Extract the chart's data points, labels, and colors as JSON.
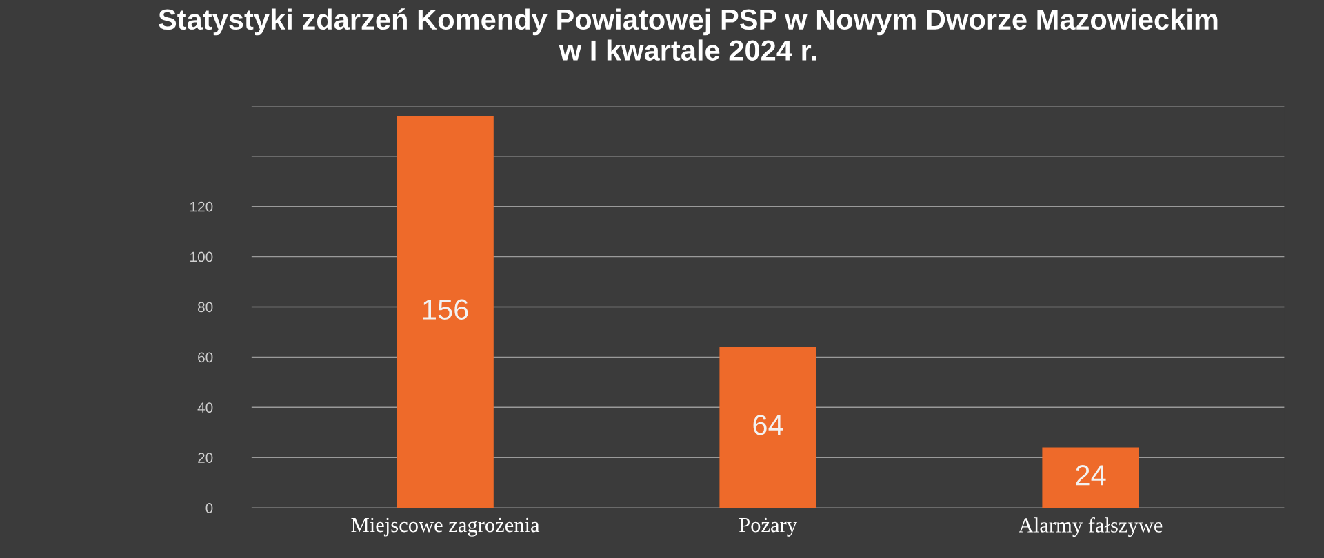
{
  "chart_data": {
    "type": "bar",
    "title": "Statystyki zdarzeń Komendy Powiatowej PSP w Nowym Dworze Mazowieckim\nw I kwartale 2024 r.",
    "categories": [
      "Miejscowe zagrożenia",
      "Pożary",
      "Alarmy fałszywe"
    ],
    "values": [
      156,
      64,
      24
    ],
    "color": "#ee6a2a",
    "ylim": [
      0,
      160
    ],
    "yticks": [
      0,
      20,
      40,
      60,
      80,
      100,
      120,
      {
        "value": 140,
        "label": null
      },
      {
        "value": 160,
        "label": null
      }
    ],
    "grid": "y",
    "data_labels": true
  }
}
